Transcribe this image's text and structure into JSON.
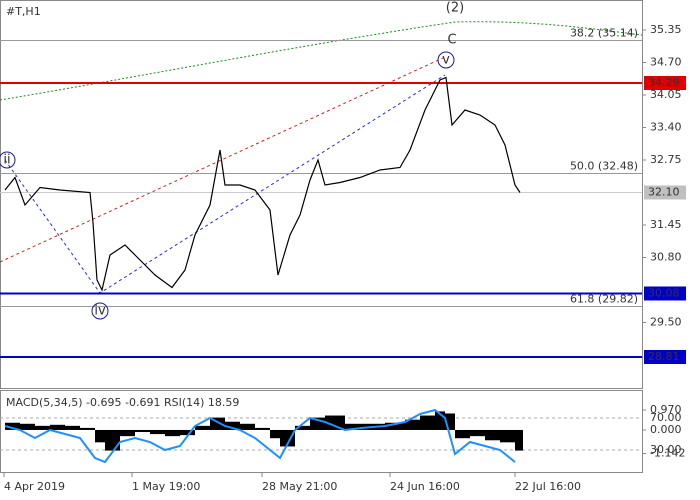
{
  "chart_data": [
    {
      "type": "line",
      "title": "#T,H1",
      "color": "#000000",
      "x": [
        5,
        15,
        25,
        40,
        60,
        90,
        93,
        97,
        102,
        110,
        125,
        140,
        155,
        172,
        185,
        195,
        210,
        220,
        225,
        240,
        255,
        270,
        278,
        290,
        300,
        310,
        318,
        325,
        340,
        360,
        380,
        400,
        410,
        425,
        440,
        446,
        452,
        465,
        480,
        495,
        505,
        515,
        520
      ],
      "values": [
        32.15,
        32.4,
        31.85,
        32.2,
        32.15,
        32.1,
        31.5,
        30.35,
        30.15,
        30.85,
        31.05,
        30.75,
        30.45,
        30.2,
        30.55,
        31.25,
        31.85,
        32.95,
        32.25,
        32.25,
        32.15,
        31.75,
        30.45,
        31.25,
        31.65,
        32.35,
        32.75,
        32.25,
        32.3,
        32.4,
        32.55,
        32.6,
        32.95,
        33.75,
        34.35,
        34.4,
        33.45,
        33.75,
        33.65,
        33.45,
        33.05,
        32.25,
        32.1
      ],
      "xlim": [
        0,
        642
      ],
      "ylim": [
        28.19,
        35.95
      ],
      "xticks": [
        {
          "value": 4,
          "label": "4 Apr 2019"
        },
        {
          "value": 132,
          "label": "1 May 19:00"
        },
        {
          "value": 262,
          "label": "28 May 21:00"
        },
        {
          "value": 390,
          "label": "24 Jun 16:00"
        },
        {
          "value": 515,
          "label": "22 Jul 16:00"
        }
      ],
      "yticks": [
        35.35,
        {
          "value": 34.7,
          "label": "34.70"
        },
        34.05,
        {
          "value": 33.4,
          "label": "33.40"
        },
        32.75,
        31.45,
        {
          "value": 30.8,
          "label": "30.80"
        },
        {
          "value": 29.5,
          "label": "29.50"
        }
      ],
      "levels": [
        {
          "value": 34.29,
          "label": "34.29",
          "color": "#e00000"
        },
        {
          "value": 30.08,
          "label": "30.08",
          "color": "#0000c8"
        },
        {
          "value": 28.81,
          "label": "28.81",
          "color": "#0000c8"
        }
      ],
      "last_price": {
        "value": 32.1,
        "label": "32.10",
        "color": "#c0c0c0"
      },
      "fibo": [
        {
          "value": 35.14,
          "label": "38.2 (35.14)"
        },
        {
          "value": 32.48,
          "label": "50.0 (32.48)"
        },
        {
          "value": 29.82,
          "label": "61.8 (29.82)"
        }
      ],
      "wave_labels": [
        "(2)",
        "C",
        "v",
        "iv",
        "ii"
      ]
    },
    {
      "type": "indicator",
      "title": "MACD(5,34,5) -0.695 -0.691 RSI(14) 18.59",
      "x": [
        5,
        20,
        35,
        50,
        65,
        80,
        95,
        105,
        120,
        135,
        150,
        165,
        180,
        195,
        210,
        225,
        240,
        255,
        270,
        280,
        295,
        310,
        325,
        345,
        365,
        385,
        405,
        420,
        435,
        445,
        455,
        470,
        485,
        500,
        515
      ],
      "series": [
        {
          "type": "bar",
          "color": "#000000",
          "values": [
            0.35,
            0.3,
            0.2,
            0.25,
            0.2,
            0.1,
            -0.6,
            -1.0,
            -0.3,
            -0.1,
            -0.2,
            -0.3,
            -0.25,
            0.2,
            0.6,
            0.4,
            0.3,
            0.1,
            -0.4,
            -0.8,
            0.2,
            0.6,
            0.7,
            0.3,
            0.3,
            0.35,
            0.5,
            0.7,
            0.9,
            0.8,
            -0.4,
            -0.3,
            -0.5,
            -0.6,
            -1.0
          ]
        },
        {
          "type": "line",
          "axis": "y2",
          "color": "#1e90ff",
          "values": [
            60,
            55,
            45,
            55,
            50,
            45,
            20,
            15,
            40,
            45,
            40,
            30,
            35,
            60,
            70,
            60,
            55,
            45,
            30,
            20,
            55,
            70,
            65,
            55,
            58,
            60,
            65,
            75,
            80,
            70,
            25,
            40,
            35,
            30,
            15
          ]
        }
      ],
      "xlim": [
        0,
        642
      ],
      "ylim": [
        -2.04,
        1.94
      ],
      "yticks": [
        {
          "value": 0.97,
          "label": "0.970"
        },
        {
          "value": 0,
          "label": "0.000"
        },
        {
          "value": -1.142,
          "label": "-1.142"
        }
      ],
      "y2lim": [
        2.5,
        105
      ],
      "y2ticks": [
        {
          "value": 70,
          "label": "70.00"
        },
        {
          "value": 30,
          "label": "30.00"
        }
      ]
    }
  ]
}
